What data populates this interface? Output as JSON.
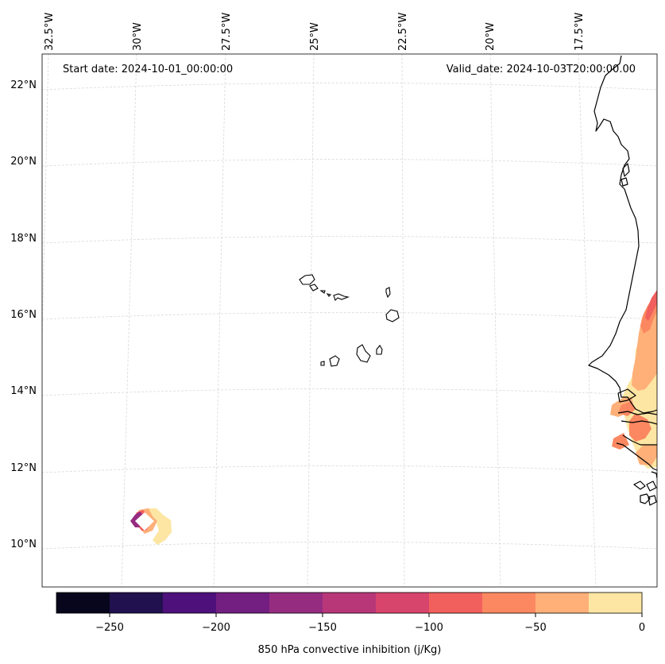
{
  "header": {
    "start_date": "Start date: 2024-10-01_00:00:00",
    "valid_date": "Valid_date: 2024-10-03T20:00:00.00"
  },
  "axes": {
    "lon_labels": [
      "32.5°W",
      "30°W",
      "27.5°W",
      "25°W",
      "22.5°W",
      "20°W",
      "17.5°W"
    ],
    "lat_labels": [
      "22°N",
      "20°N",
      "18°N",
      "16°N",
      "14°N",
      "12°N",
      "10°N"
    ]
  },
  "colorbar": {
    "title": "850 hPa convective inhibition (j/Kg)",
    "ticks": [
      "−250",
      "−200",
      "−150",
      "−100",
      "−50",
      "0"
    ],
    "colors": [
      "#07061c",
      "#21114e",
      "#4e117b",
      "#721f81",
      "#952c80",
      "#b73779",
      "#d8456c",
      "#f1605d",
      "#fb8861",
      "#feb078",
      "#fde6a3"
    ]
  },
  "chart_data": {
    "type": "map",
    "variable": "850 hPa convective inhibition",
    "units": "j/Kg",
    "start_date": "2024-10-01_00:00:00",
    "valid_date": "2024-10-03T20:00:00.00",
    "lon_ticks": [
      -32.5,
      -30,
      -27.5,
      -25,
      -22.5,
      -20,
      -17.5
    ],
    "lat_ticks": [
      22,
      20,
      18,
      16,
      14,
      12,
      10
    ],
    "colorbar_levels": [
      -275,
      -250,
      -225,
      -200,
      -175,
      -150,
      -125,
      -100,
      -75,
      -50,
      -25,
      0
    ],
    "colorbar_ticks": [
      -250,
      -200,
      -150,
      -100,
      -50,
      0
    ]
  }
}
